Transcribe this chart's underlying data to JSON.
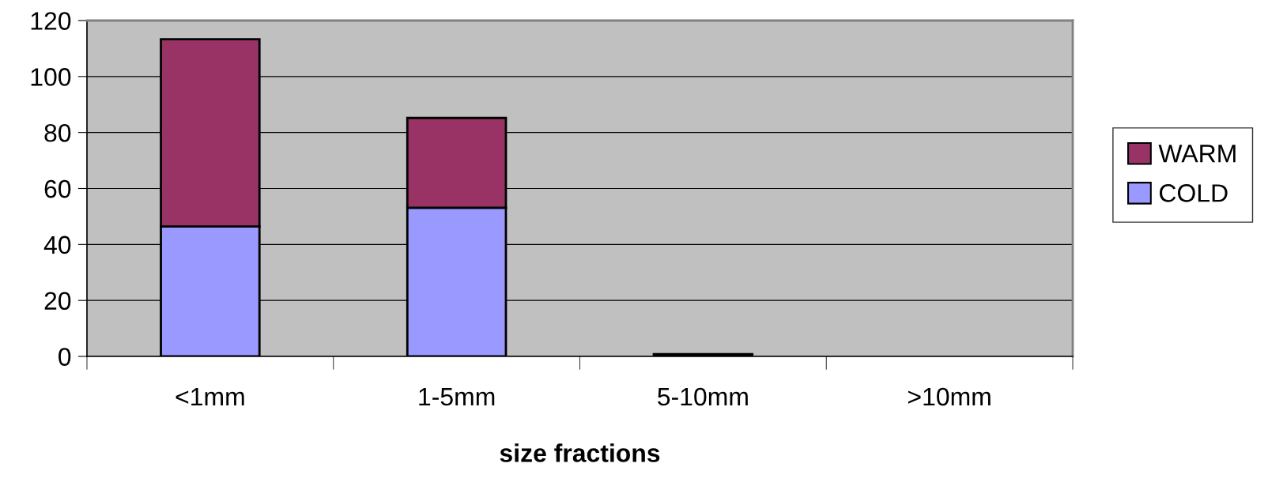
{
  "chart_data": {
    "type": "bar",
    "stacked": true,
    "xlabel": "size fractions",
    "categories": [
      "<1mm",
      "1-5mm",
      "5-10mm",
      ">10mm"
    ],
    "series": [
      {
        "name": "COLD",
        "color": "#9999ff",
        "values": [
          46.4,
          53.1,
          0.8,
          0
        ]
      },
      {
        "name": "WARM",
        "color": "#993366",
        "values": [
          66.9,
          32.1,
          null,
          0
        ]
      }
    ],
    "ylim": [
      0,
      120
    ],
    "yticks": [
      0,
      20,
      40,
      60,
      80,
      100,
      120
    ],
    "grid": "y",
    "legend": "right"
  }
}
